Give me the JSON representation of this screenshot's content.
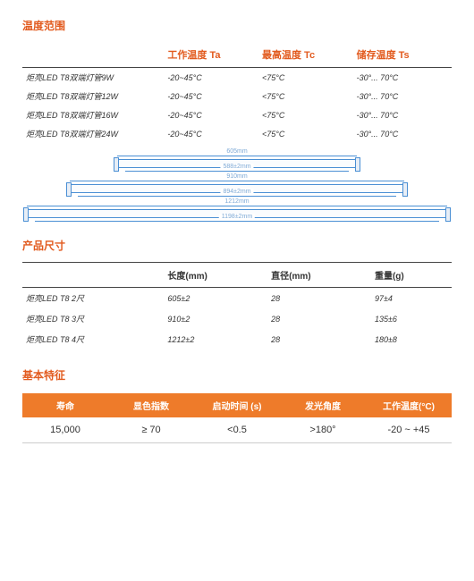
{
  "sections": {
    "temp_range": "温度范围",
    "size": "产品尺寸",
    "basic": "基本特征"
  },
  "temp": {
    "headers": {
      "ta": "工作温度 Ta",
      "tc": "最高温度 Tc",
      "ts": "储存温度 Ts"
    },
    "rows": [
      {
        "name": "炬亮LED T8双端灯管9W",
        "ta": "-20~45°C",
        "tc": "<75°C",
        "ts": "-30°... 70°C"
      },
      {
        "name": "炬亮LED T8双端灯管12W",
        "ta": "-20~45°C",
        "tc": "<75°C",
        "ts": "-30°... 70°C"
      },
      {
        "name": "炬亮LED T8双端灯管16W",
        "ta": "-20~45°C",
        "tc": "<75°C",
        "ts": "-30°... 70°C"
      },
      {
        "name": "炬亮LED T8双端灯管24W",
        "ta": "-20~45°C",
        "tc": "<75°C",
        "ts": "-30°... 70°C"
      }
    ]
  },
  "diagrams": {
    "tubes": [
      {
        "top_label": "605mm",
        "bottom_label": "588±2mm",
        "width_pct": 56
      },
      {
        "top_label": "910mm",
        "bottom_label": "894±2mm",
        "width_pct": 78
      },
      {
        "top_label": "1212mm",
        "bottom_label": "1198±2mm",
        "width_pct": 98
      }
    ],
    "line_color": "#4a8fd4"
  },
  "size": {
    "headers": {
      "len": "长度(mm)",
      "dia": "直径(mm)",
      "wt": "重量(g)"
    },
    "rows": [
      {
        "name": "炬亮LED T8 2尺",
        "len": "605±2",
        "dia": "28",
        "wt": "97±4"
      },
      {
        "name": "炬亮LED T8 3尺",
        "len": "910±2",
        "dia": "28",
        "wt": "135±6"
      },
      {
        "name": "炬亮LED T8 4尺",
        "len": "1212±2",
        "dia": "28",
        "wt": "180±8"
      }
    ]
  },
  "basic": {
    "headers": {
      "life": "寿命",
      "cri": "显色指数",
      "start": "启动时间 (s)",
      "angle": "发光角度",
      "temp": "工作温度(°C)"
    },
    "values": {
      "life": "15,000",
      "cri": "≥ 70",
      "start": "<0.5",
      "angle": ">180°",
      "temp": "-20 ~ +45"
    }
  },
  "colors": {
    "accent": "#e25b1f",
    "orange_bar": "#ee7b2a"
  }
}
